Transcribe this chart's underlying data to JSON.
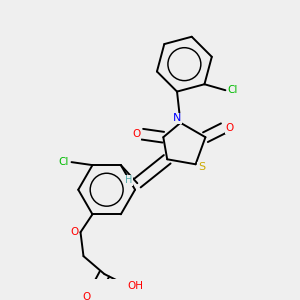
{
  "background_color": "#efefef",
  "bond_color": "#000000",
  "atom_colors": {
    "N": "#0000ff",
    "O": "#ff0000",
    "S": "#ccaa00",
    "Cl": "#00bb00",
    "C": "#000000",
    "H": "#55aaaa"
  }
}
